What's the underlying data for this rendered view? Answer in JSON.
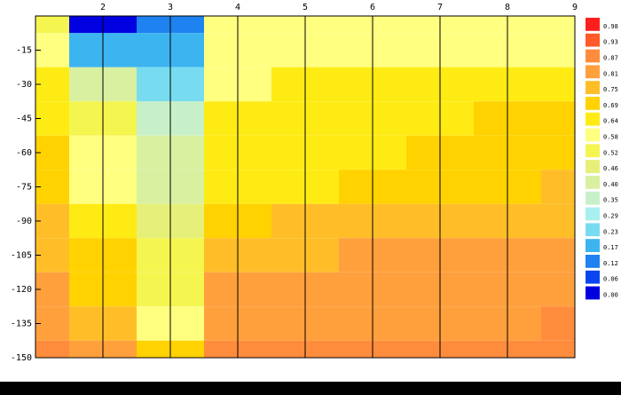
{
  "chart_data": {
    "type": "contour",
    "x": [
      1,
      2,
      3,
      4,
      5,
      6,
      7,
      8,
      9
    ],
    "y": [
      0,
      -15,
      -30,
      -45,
      -60,
      -75,
      -90,
      -105,
      -120,
      -135,
      -150
    ],
    "z": [
      [
        0.55,
        0.05,
        0.12,
        0.58,
        0.6,
        0.6,
        0.58,
        0.6,
        0.6
      ],
      [
        0.6,
        0.17,
        0.2,
        0.58,
        0.62,
        0.62,
        0.62,
        0.62,
        0.62
      ],
      [
        0.64,
        0.4,
        0.25,
        0.62,
        0.64,
        0.66,
        0.66,
        0.66,
        0.66
      ],
      [
        0.66,
        0.52,
        0.35,
        0.64,
        0.64,
        0.66,
        0.68,
        0.7,
        0.7
      ],
      [
        0.7,
        0.58,
        0.42,
        0.66,
        0.66,
        0.68,
        0.7,
        0.72,
        0.72
      ],
      [
        0.74,
        0.62,
        0.45,
        0.66,
        0.68,
        0.72,
        0.74,
        0.74,
        0.75
      ],
      [
        0.76,
        0.66,
        0.48,
        0.72,
        0.76,
        0.76,
        0.77,
        0.78,
        0.78
      ],
      [
        0.8,
        0.7,
        0.52,
        0.8,
        0.8,
        0.82,
        0.82,
        0.82,
        0.82
      ],
      [
        0.83,
        0.74,
        0.55,
        0.84,
        0.84,
        0.84,
        0.84,
        0.84,
        0.84
      ],
      [
        0.86,
        0.8,
        0.6,
        0.86,
        0.86,
        0.86,
        0.86,
        0.86,
        0.87
      ],
      [
        0.9,
        0.86,
        0.7,
        0.9,
        0.9,
        0.92,
        0.9,
        0.88,
        0.88
      ]
    ],
    "xlim": [
      1,
      9
    ],
    "ylim": [
      -150,
      0
    ],
    "xticks": [
      2,
      3,
      4,
      5,
      6,
      7,
      8,
      9
    ],
    "yticks": [
      -15,
      -30,
      -45,
      -60,
      -75,
      -90,
      -105,
      -120,
      -135,
      -150
    ],
    "levels": [
      {
        "value": 0,
        "label": "0.00"
      },
      {
        "value": 0.06,
        "label": "0.06"
      },
      {
        "value": 0.12,
        "label": "0.12"
      },
      {
        "value": 0.17,
        "label": "0.17"
      },
      {
        "value": 0.23,
        "label": "0.23"
      },
      {
        "value": 0.29,
        "label": "0.29"
      },
      {
        "value": 0.35,
        "label": "0.35"
      },
      {
        "value": 0.4,
        "label": "0.40"
      },
      {
        "value": 0.46,
        "label": "0.46"
      },
      {
        "value": 0.52,
        "label": "0.52"
      },
      {
        "value": 0.58,
        "label": "0.58"
      },
      {
        "value": 0.64,
        "label": "0.64"
      },
      {
        "value": 0.69,
        "label": "0.69"
      },
      {
        "value": 0.75,
        "label": "0.75"
      },
      {
        "value": 0.81,
        "label": "0.81"
      },
      {
        "value": 0.87,
        "label": "0.87"
      },
      {
        "value": 0.93,
        "label": "0.93"
      },
      {
        "value": 0.98,
        "label": "0.98"
      }
    ],
    "level_colors": [
      "#0000e0",
      "#0a46f0",
      "#1e82f0",
      "#3cb4f0",
      "#78dcf0",
      "#a8f0f0",
      "#c8f0c8",
      "#d8f0a0",
      "#e6f078",
      "#f5f550",
      "#ffff80",
      "#ffeb14",
      "#ffd200",
      "#ffbe28",
      "#ffa03c",
      "#ff8c3c",
      "#ff5a28",
      "#ff1e1e"
    ],
    "grid": true
  }
}
